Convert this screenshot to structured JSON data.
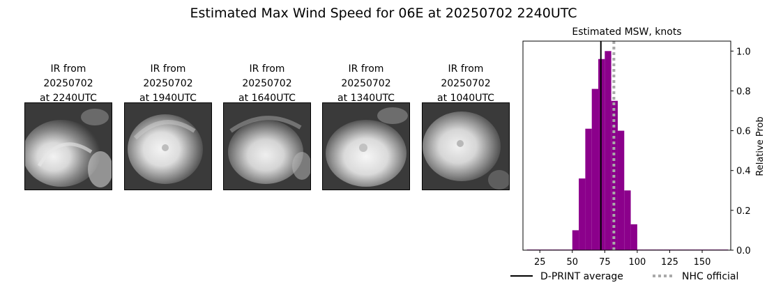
{
  "title": "Estimated Max Wind Speed for 06E at 20250702 2240UTC",
  "panels": [
    {
      "line1": "IR from",
      "line2": "20250702",
      "line3": "at 2240UTC"
    },
    {
      "line1": "IR from",
      "line2": "20250702",
      "line3": "at 1940UTC"
    },
    {
      "line1": "IR from",
      "line2": "20250702",
      "line3": "at 1640UTC"
    },
    {
      "line1": "IR from",
      "line2": "20250702",
      "line3": "at 1340UTC"
    },
    {
      "line1": "IR from",
      "line2": "20250702",
      "line3": "at 1040UTC"
    }
  ],
  "chart_data": {
    "type": "bar",
    "title": "Estimated MSW, knots",
    "xlabel": "",
    "ylabel": "Relative Prob",
    "xlim": [
      12,
      172
    ],
    "ylim": [
      0,
      1.05
    ],
    "xticks": [
      25,
      50,
      75,
      100,
      125,
      150
    ],
    "yticks": [
      0.0,
      0.2,
      0.4,
      0.6,
      0.8,
      1.0
    ],
    "ytick_labels": [
      "0.0",
      "0.2",
      "0.4",
      "0.6",
      "0.8",
      "1.0"
    ],
    "y_axis_side": "right",
    "bar_color": "#8b008b",
    "bin_width": 5,
    "bins": [
      {
        "left": 15,
        "value": 0.003
      },
      {
        "left": 20,
        "value": 0.003
      },
      {
        "left": 25,
        "value": 0.003
      },
      {
        "left": 30,
        "value": 0.003
      },
      {
        "left": 35,
        "value": 0.003
      },
      {
        "left": 40,
        "value": 0.003
      },
      {
        "left": 45,
        "value": 0.003
      },
      {
        "left": 50,
        "value": 0.1
      },
      {
        "left": 55,
        "value": 0.36
      },
      {
        "left": 60,
        "value": 0.61
      },
      {
        "left": 65,
        "value": 0.81
      },
      {
        "left": 70,
        "value": 0.96
      },
      {
        "left": 75,
        "value": 1.0
      },
      {
        "left": 80,
        "value": 0.75
      },
      {
        "left": 85,
        "value": 0.6
      },
      {
        "left": 90,
        "value": 0.3
      },
      {
        "left": 95,
        "value": 0.13
      },
      {
        "left": 100,
        "value": 0.003
      },
      {
        "left": 105,
        "value": 0.003
      },
      {
        "left": 110,
        "value": 0.003
      },
      {
        "left": 115,
        "value": 0.003
      },
      {
        "left": 120,
        "value": 0.003
      },
      {
        "left": 125,
        "value": 0.003
      },
      {
        "left": 130,
        "value": 0.003
      },
      {
        "left": 135,
        "value": 0.003
      },
      {
        "left": 140,
        "value": 0.003
      },
      {
        "left": 145,
        "value": 0.003
      },
      {
        "left": 150,
        "value": 0.003
      },
      {
        "left": 155,
        "value": 0.003
      },
      {
        "left": 160,
        "value": 0.003
      },
      {
        "left": 165,
        "value": 0.003
      }
    ],
    "dprint_average": 72,
    "nhc_official": 82,
    "dprint_color": "#000000",
    "nhc_color": "#a9a9a9",
    "legend": [
      {
        "label": "D-PRINT average",
        "style": "solid"
      },
      {
        "label": "NHC official",
        "style": "dotted"
      }
    ],
    "legend_position": "bottom"
  }
}
